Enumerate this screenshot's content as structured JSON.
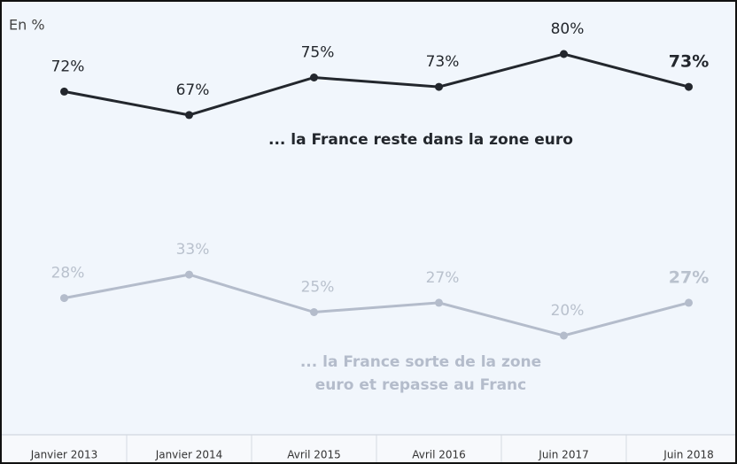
{
  "chart_data": {
    "type": "line",
    "annotation": "En %",
    "categories": [
      "Janvier 2013",
      "Janvier 2014",
      "Avril 2015",
      "Avril 2016",
      "Juin 2017",
      "Juin 2018"
    ],
    "ylim": [
      0,
      90
    ],
    "series": [
      {
        "name": "... la France reste dans la zone euro",
        "color": "#23272d",
        "values": [
          72,
          67,
          75,
          73,
          80,
          73
        ],
        "value_labels": [
          "72%",
          "67%",
          "75%",
          "73%",
          "80%",
          "73%"
        ]
      },
      {
        "name": "... la France sorte de la zone euro et repasse au Franc",
        "color": "#b4bccb",
        "values": [
          28,
          33,
          25,
          27,
          20,
          27
        ],
        "value_labels": [
          "28%",
          "33%",
          "25%",
          "27%",
          "20%",
          "27%"
        ]
      }
    ]
  }
}
